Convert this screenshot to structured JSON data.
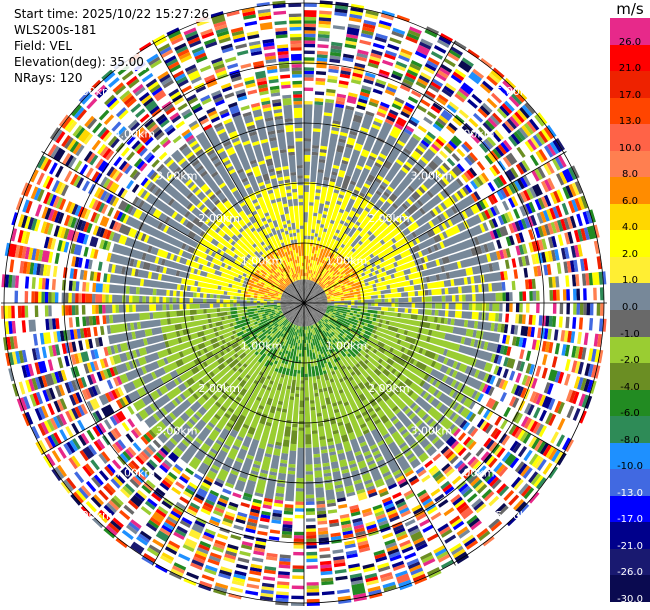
{
  "header": {
    "start_time": "Start time: 2025/10/22 15:27:26",
    "instrument": "WLS200s-181",
    "field": "Field: VEL",
    "elevation": "Elevation(deg): 35.00",
    "nrays": "NRays: 120"
  },
  "range_rings": {
    "labels": [
      "1.00km",
      "2.00km",
      "3.00km",
      "4.00km",
      "5.00km"
    ],
    "label_color": "#ffffff",
    "line_color": "#000000"
  },
  "colorbar": {
    "unit": "m/s",
    "levels": [
      {
        "label": "26.0",
        "color": "#e7298a"
      },
      {
        "label": "21.0",
        "color": "#ff0000"
      },
      {
        "label": "17.0",
        "color": "#ee2200"
      },
      {
        "label": "13.0",
        "color": "#ff4500"
      },
      {
        "label": "10.0",
        "color": "#ff6347"
      },
      {
        "label": "8.0",
        "color": "#ff7f50"
      },
      {
        "label": "6.0",
        "color": "#ff8c00"
      },
      {
        "label": "4.0",
        "color": "#ffd700"
      },
      {
        "label": "2.0",
        "color": "#ffff00"
      },
      {
        "label": "1.0",
        "color": "#ffee33"
      },
      {
        "label": "0.0",
        "color": "#778899"
      },
      {
        "label": "-1.0",
        "color": "#696969"
      },
      {
        "label": "-2.0",
        "color": "#9acd32"
      },
      {
        "label": "-4.0",
        "color": "#6b8e23"
      },
      {
        "label": "-6.0",
        "color": "#228b22"
      },
      {
        "label": "-8.0",
        "color": "#2e8b57"
      },
      {
        "label": "-10.0",
        "color": "#1e90ff"
      },
      {
        "label": "-13.0",
        "color": "#4169e1"
      },
      {
        "label": "-17.0",
        "color": "#0000ff"
      },
      {
        "label": "-21.0",
        "color": "#00008b"
      },
      {
        "label": "-26.0",
        "color": "#191970"
      },
      {
        "label": "-30.0",
        "color": "#0a0a50"
      }
    ]
  }
}
